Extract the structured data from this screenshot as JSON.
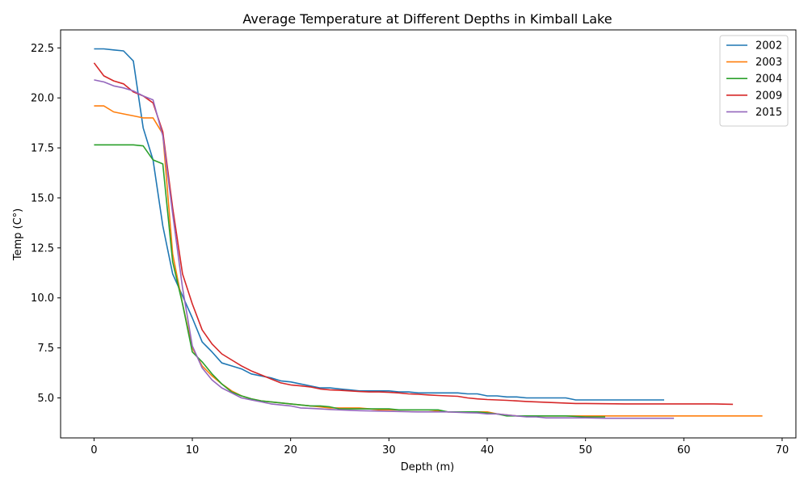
{
  "chart_data": {
    "type": "line",
    "title": "Average Temperature at Different Depths in Kimball Lake",
    "xlabel": "Depth (m)",
    "ylabel": "Temp (C°)",
    "xlim": [
      -3.4,
      71.4
    ],
    "ylim": [
      3.0,
      23.4
    ],
    "xticks": [
      0,
      10,
      20,
      30,
      40,
      50,
      60,
      70
    ],
    "yticks": [
      5.0,
      7.5,
      10.0,
      12.5,
      15.0,
      17.5,
      20.0,
      22.5
    ],
    "xtick_labels": [
      "0",
      "10",
      "20",
      "30",
      "40",
      "50",
      "60",
      "70"
    ],
    "ytick_labels": [
      "5.0",
      "7.5",
      "10.0",
      "12.5",
      "15.0",
      "17.5",
      "20.0",
      "22.5"
    ],
    "grid": false,
    "legend_position": "top-right",
    "series": [
      {
        "name": "2002",
        "color": "#1f77b4",
        "x": [
          0,
          1,
          2,
          3,
          4,
          5,
          6,
          7,
          8,
          9,
          10,
          11,
          12,
          13,
          14,
          15,
          16,
          17,
          18,
          19,
          20,
          21,
          22,
          23,
          24,
          25,
          26,
          27,
          28,
          29,
          30,
          31,
          32,
          33,
          34,
          35,
          36,
          37,
          38,
          39,
          40,
          41,
          42,
          43,
          44,
          45,
          46,
          47,
          48,
          49,
          50,
          52,
          54,
          56,
          58
        ],
        "y": [
          22.45,
          22.45,
          22.4,
          22.35,
          21.85,
          18.5,
          16.9,
          13.6,
          11.2,
          10.1,
          9.0,
          7.8,
          7.3,
          6.75,
          6.6,
          6.45,
          6.2,
          6.1,
          6.0,
          5.85,
          5.8,
          5.7,
          5.6,
          5.5,
          5.5,
          5.45,
          5.4,
          5.35,
          5.35,
          5.35,
          5.35,
          5.3,
          5.3,
          5.25,
          5.25,
          5.25,
          5.25,
          5.25,
          5.2,
          5.2,
          5.1,
          5.1,
          5.05,
          5.05,
          5.0,
          5.0,
          5.0,
          5.0,
          5.0,
          4.9,
          4.9,
          4.9,
          4.9,
          4.9,
          4.9
        ]
      },
      {
        "name": "2003",
        "color": "#ff7f0e",
        "x": [
          0,
          1,
          2,
          3,
          4,
          5,
          6,
          7,
          8,
          9,
          10,
          11,
          12,
          13,
          14,
          15,
          16,
          17,
          18,
          19,
          20,
          21,
          22,
          23,
          24,
          25,
          26,
          27,
          28,
          29,
          30,
          31,
          32,
          33,
          34,
          35,
          36,
          37,
          38,
          39,
          40,
          41,
          42,
          43,
          44,
          45,
          46,
          47,
          48,
          50,
          55,
          60,
          65,
          68
        ],
        "y": [
          19.6,
          19.6,
          19.3,
          19.2,
          19.1,
          19.0,
          19.0,
          18.2,
          12.2,
          9.7,
          7.5,
          6.6,
          6.1,
          5.7,
          5.35,
          5.1,
          4.95,
          4.85,
          4.8,
          4.75,
          4.7,
          4.65,
          4.6,
          4.55,
          4.5,
          4.5,
          4.5,
          4.5,
          4.45,
          4.4,
          4.4,
          4.4,
          4.4,
          4.4,
          4.4,
          4.35,
          4.3,
          4.3,
          4.3,
          4.3,
          4.3,
          4.2,
          4.15,
          4.1,
          4.1,
          4.1,
          4.1,
          4.1,
          4.1,
          4.1,
          4.1,
          4.1,
          4.1,
          4.1
        ]
      },
      {
        "name": "2004",
        "color": "#2ca02c",
        "x": [
          0,
          1,
          2,
          3,
          4,
          5,
          6,
          7,
          8,
          9,
          10,
          11,
          12,
          13,
          14,
          15,
          16,
          17,
          18,
          19,
          20,
          21,
          22,
          23,
          24,
          25,
          26,
          27,
          28,
          29,
          30,
          31,
          32,
          33,
          34,
          35,
          36,
          37,
          38,
          39,
          40,
          41,
          42,
          43,
          44,
          45,
          46,
          47,
          48,
          50,
          52
        ],
        "y": [
          17.65,
          17.65,
          17.65,
          17.65,
          17.65,
          17.6,
          16.9,
          16.7,
          11.8,
          9.7,
          7.3,
          6.8,
          6.2,
          5.7,
          5.3,
          5.1,
          4.95,
          4.85,
          4.8,
          4.75,
          4.7,
          4.65,
          4.6,
          4.6,
          4.55,
          4.45,
          4.45,
          4.45,
          4.45,
          4.45,
          4.45,
          4.4,
          4.4,
          4.4,
          4.4,
          4.4,
          4.3,
          4.3,
          4.3,
          4.3,
          4.25,
          4.2,
          4.1,
          4.1,
          4.1,
          4.1,
          4.1,
          4.1,
          4.1,
          4.05,
          4.05
        ]
      },
      {
        "name": "2009",
        "color": "#d62728",
        "x": [
          0,
          1,
          2,
          3,
          4,
          5,
          6,
          7,
          8,
          9,
          10,
          11,
          12,
          13,
          14,
          15,
          16,
          17,
          18,
          19,
          20,
          21,
          22,
          23,
          24,
          25,
          26,
          27,
          28,
          29,
          30,
          31,
          32,
          33,
          34,
          35,
          36,
          37,
          38,
          39,
          40,
          41,
          42,
          43,
          44,
          45,
          46,
          47,
          48,
          49,
          50,
          52,
          54,
          56,
          58,
          60,
          62,
          63,
          65
        ],
        "y": [
          21.75,
          21.1,
          20.85,
          20.7,
          20.3,
          20.1,
          19.75,
          18.3,
          14.5,
          11.2,
          9.7,
          8.4,
          7.7,
          7.2,
          6.9,
          6.6,
          6.35,
          6.15,
          5.95,
          5.75,
          5.65,
          5.6,
          5.55,
          5.45,
          5.4,
          5.38,
          5.35,
          5.32,
          5.3,
          5.3,
          5.28,
          5.25,
          5.2,
          5.18,
          5.15,
          5.12,
          5.1,
          5.08,
          5.0,
          4.95,
          4.92,
          4.9,
          4.88,
          4.85,
          4.82,
          4.8,
          4.78,
          4.76,
          4.74,
          4.72,
          4.72,
          4.71,
          4.7,
          4.7,
          4.7,
          4.7,
          4.7,
          4.7,
          4.68
        ]
      },
      {
        "name": "2015",
        "color": "#9467bd",
        "x": [
          0,
          1,
          2,
          3,
          4,
          5,
          6,
          7,
          8,
          9,
          10,
          11,
          12,
          13,
          14,
          15,
          16,
          17,
          18,
          19,
          20,
          21,
          22,
          23,
          24,
          25,
          26,
          27,
          28,
          29,
          30,
          31,
          32,
          33,
          34,
          35,
          36,
          37,
          38,
          39,
          40,
          41,
          42,
          43,
          44,
          45,
          46,
          47,
          48,
          50,
          52,
          54,
          56,
          59
        ],
        "y": [
          20.9,
          20.8,
          20.6,
          20.5,
          20.35,
          20.1,
          19.9,
          18.1,
          14.2,
          10.5,
          7.6,
          6.5,
          5.9,
          5.5,
          5.25,
          5.0,
          4.9,
          4.8,
          4.7,
          4.65,
          4.6,
          4.5,
          4.48,
          4.45,
          4.42,
          4.4,
          4.38,
          4.36,
          4.35,
          4.34,
          4.33,
          4.32,
          4.31,
          4.3,
          4.3,
          4.3,
          4.3,
          4.28,
          4.26,
          4.25,
          4.2,
          4.2,
          4.15,
          4.1,
          4.05,
          4.05,
          4.0,
          4.0,
          4.0,
          4.0,
          3.98,
          3.98,
          3.98,
          3.98
        ]
      }
    ]
  }
}
